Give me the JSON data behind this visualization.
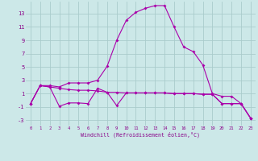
{
  "xlabel": "Windchill (Refroidissement éolien,°C)",
  "x": [
    0,
    1,
    2,
    3,
    4,
    5,
    6,
    7,
    8,
    9,
    10,
    11,
    12,
    13,
    14,
    15,
    16,
    17,
    18,
    19,
    20,
    21,
    22,
    23
  ],
  "line_top": [
    -0.5,
    2.2,
    2.2,
    2.0,
    2.6,
    2.6,
    2.6,
    3.0,
    5.1,
    9.0,
    12.0,
    13.2,
    13.8,
    14.2,
    14.2,
    11.0,
    8.0,
    7.3,
    5.3,
    1.0,
    0.6,
    0.6,
    -0.5,
    -2.7
  ],
  "line_mid": [
    -0.5,
    2.2,
    2.0,
    1.8,
    1.6,
    1.5,
    1.5,
    1.4,
    1.2,
    1.2,
    1.1,
    1.1,
    1.1,
    1.1,
    1.1,
    1.0,
    1.0,
    1.0,
    0.9,
    0.9,
    -0.5,
    -0.5,
    -0.5,
    -2.7
  ],
  "line_bot": [
    -0.5,
    2.2,
    2.0,
    -0.9,
    -0.4,
    -0.4,
    -0.5,
    1.8,
    1.2,
    -0.8,
    1.1,
    1.1,
    1.1,
    1.1,
    1.1,
    1.0,
    1.0,
    1.0,
    0.9,
    0.9,
    -0.5,
    -0.5,
    -0.5,
    -2.7
  ],
  "line_color": "#aa00aa",
  "bg_color": "#cce8e8",
  "grid_color": "#aacccc",
  "tick_color": "#880088",
  "xlim": [
    -0.5,
    23.5
  ],
  "ylim": [
    -3.8,
    14.8
  ],
  "yticks": [
    -3,
    -1,
    1,
    3,
    5,
    7,
    9,
    11,
    13
  ],
  "xticks": [
    0,
    1,
    2,
    3,
    4,
    5,
    6,
    7,
    8,
    9,
    10,
    11,
    12,
    13,
    14,
    15,
    16,
    17,
    18,
    19,
    20,
    21,
    22,
    23
  ]
}
